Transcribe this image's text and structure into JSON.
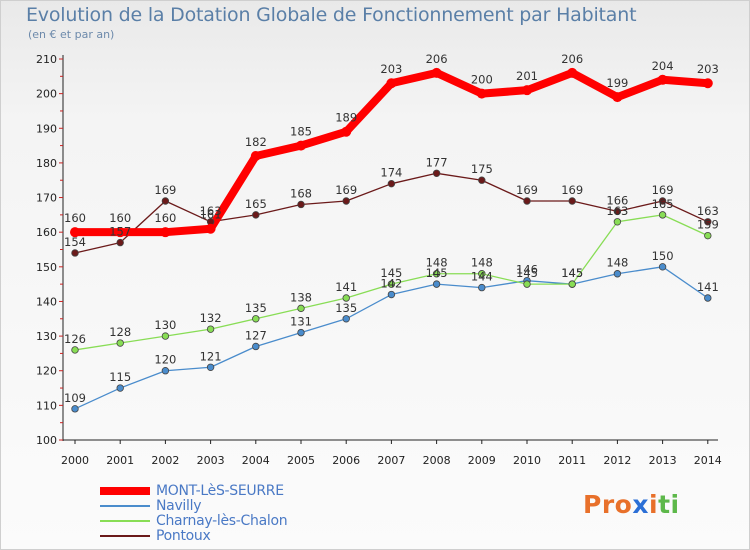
{
  "title": "Evolution de la Dotation Globale de Fonctionnement par Habitant",
  "subtitle": "(en € et par an)",
  "logo_text": "Proxiti",
  "chart_data": {
    "type": "line",
    "title": "Evolution de la Dotation Globale de Fonctionnement par Habitant",
    "ylabel": "(en € et par an)",
    "xlabel": "",
    "ylim": [
      100,
      210
    ],
    "yticks": [
      100,
      110,
      120,
      130,
      140,
      150,
      160,
      170,
      180,
      190,
      200,
      210
    ],
    "grid": false,
    "categories": [
      "2000",
      "2001",
      "2002",
      "2003",
      "2004",
      "2005",
      "2006",
      "2007",
      "2008",
      "2009",
      "2010",
      "2011",
      "2012",
      "2013",
      "2014"
    ],
    "series": [
      {
        "name": "MONT-LèS-SEURRE",
        "color": "#ff0000",
        "values": [
          160,
          160,
          160,
          161,
          182,
          185,
          189,
          203,
          206,
          200,
          201,
          206,
          199,
          204,
          203
        ]
      },
      {
        "name": "Navilly",
        "color": "#4a8ccc",
        "values": [
          109,
          115,
          120,
          121,
          127,
          131,
          135,
          142,
          145,
          144,
          146,
          145,
          148,
          150,
          141
        ]
      },
      {
        "name": "Charnay-lès-Chalon",
        "color": "#88dd55",
        "values": [
          126,
          128,
          130,
          132,
          135,
          138,
          141,
          145,
          148,
          148,
          145,
          145,
          163,
          165,
          159
        ]
      },
      {
        "name": "Pontoux",
        "color": "#6b1a1a",
        "values": [
          154,
          157,
          169,
          163,
          165,
          168,
          169,
          174,
          177,
          175,
          169,
          169,
          166,
          169,
          163
        ]
      }
    ]
  }
}
